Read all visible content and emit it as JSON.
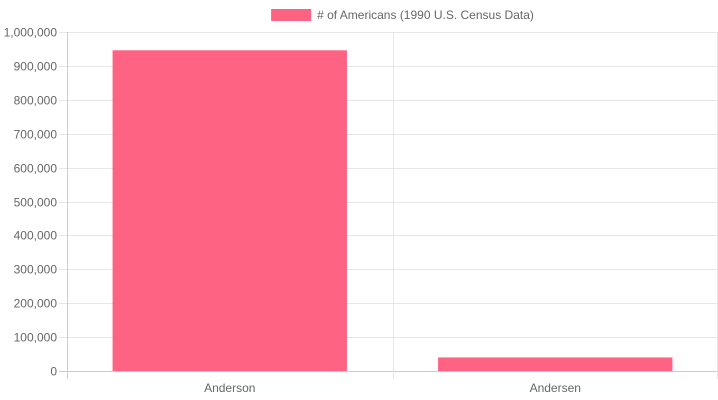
{
  "chart_data": {
    "type": "bar",
    "categories": [
      "Anderson",
      "Andersen"
    ],
    "series": [
      {
        "name": "# of Americans (1990 U.S. Census Data)",
        "values": [
          946000,
          40000
        ],
        "color": "#ff6384"
      }
    ],
    "ylim": [
      0,
      1000000
    ],
    "ytick_step": 100000,
    "ytick_labels": [
      "0",
      "100,000",
      "200,000",
      "300,000",
      "400,000",
      "500,000",
      "600,000",
      "700,000",
      "800,000",
      "900,000",
      "1,000,000"
    ],
    "legend_position": "top-center",
    "grid": true,
    "colors": {
      "grid": "#e6e6e6",
      "axis": "#cccccc",
      "text": "#666666"
    }
  }
}
